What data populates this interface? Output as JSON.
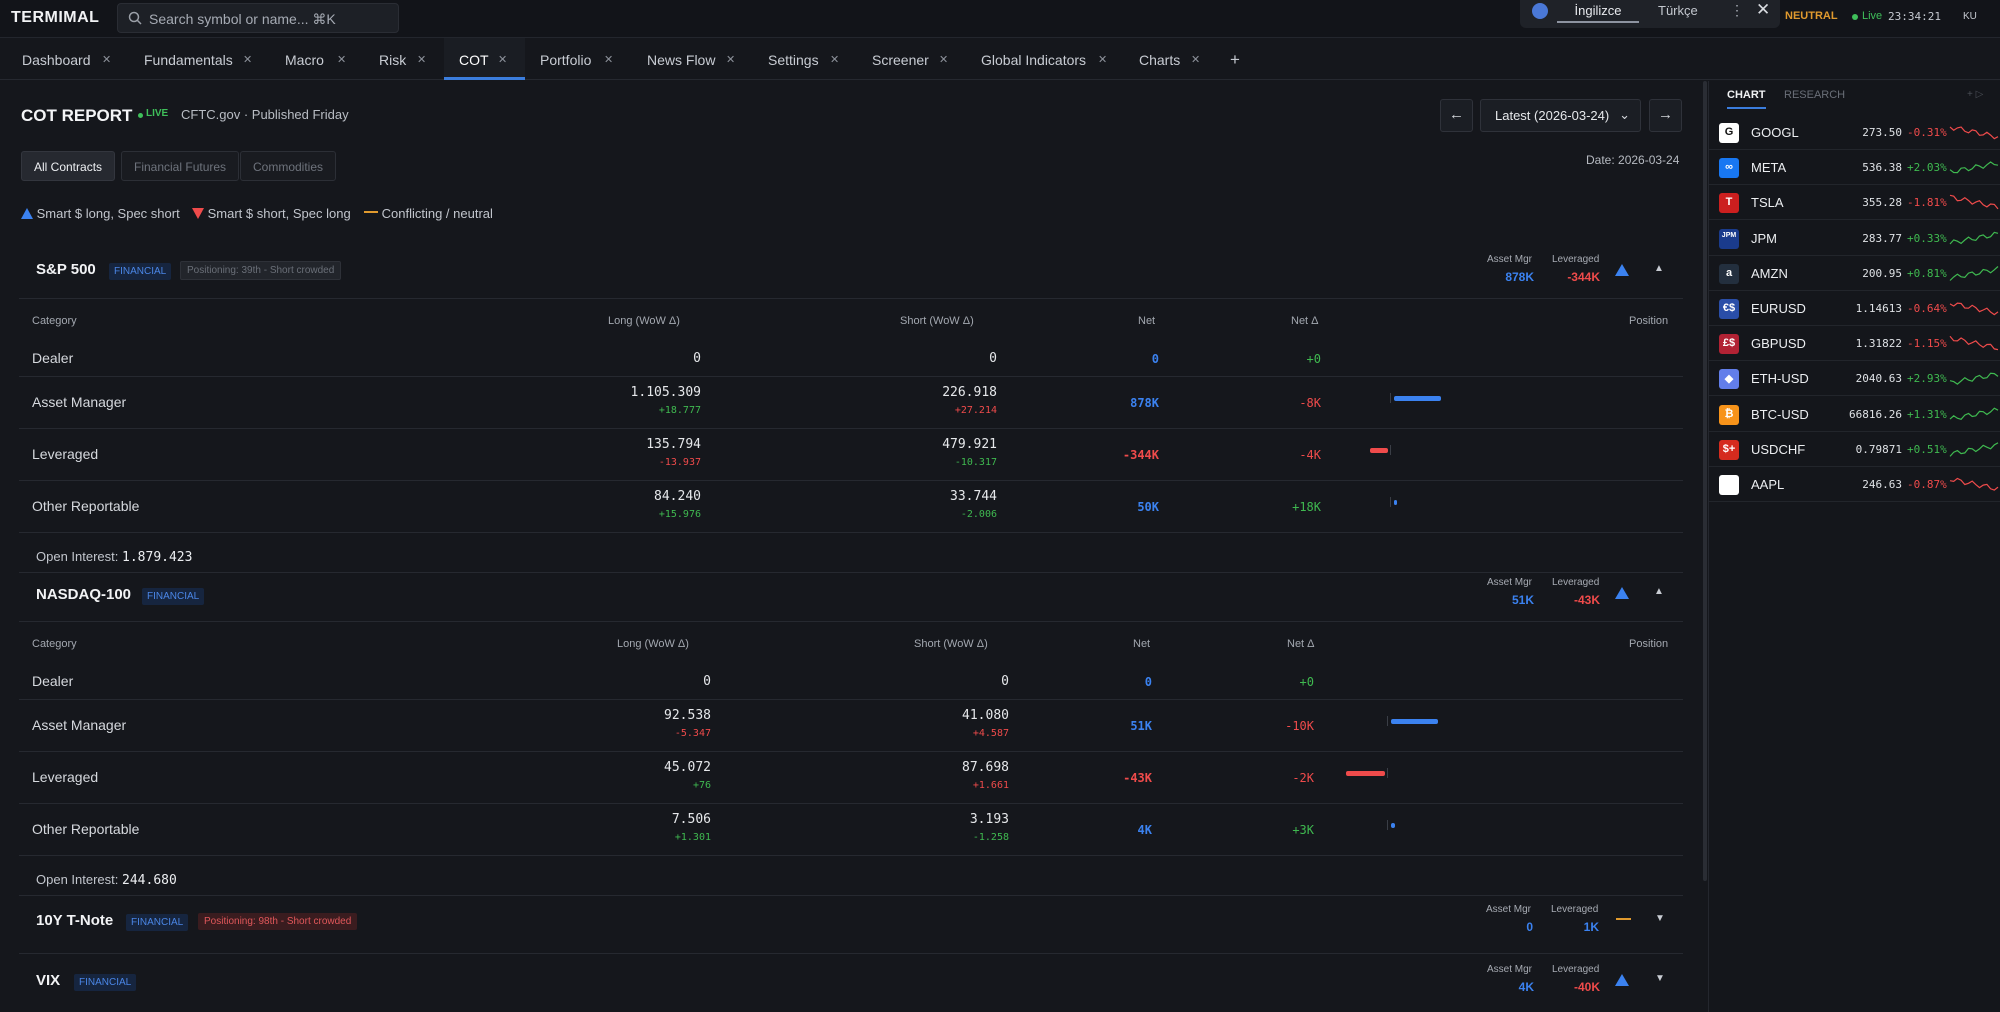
{
  "app": {
    "brand": "TERMIMAL",
    "search_placeholder": "Search symbol or name...  ⌘K"
  },
  "translate_bar": {
    "lang_active": "İngilizce",
    "lang_other": "Türkçe",
    "more": "⋮",
    "close": "✕"
  },
  "status": {
    "regime": "NEUTRAL",
    "live": "Live",
    "clock": "23:34:21",
    "user": "KU"
  },
  "tabs": [
    {
      "label": "Dashboard"
    },
    {
      "label": "Fundamentals"
    },
    {
      "label": "Macro"
    },
    {
      "label": "Risk"
    },
    {
      "label": "COT",
      "active": true
    },
    {
      "label": "Portfolio"
    },
    {
      "label": "News Flow"
    },
    {
      "label": "Settings"
    },
    {
      "label": "Screener"
    },
    {
      "label": "Global Indicators"
    },
    {
      "label": "Charts"
    }
  ],
  "add_tab": "+",
  "report": {
    "title": "COT REPORT",
    "live": "LIVE",
    "source": "CFTC.gov · Published Friday",
    "date_select": "Latest (2026-03-24)",
    "prev": "←",
    "next": "→",
    "date_info": "Date: 2026-03-24",
    "filters": [
      "All Contracts",
      "Financial Futures",
      "Commodities"
    ],
    "legend": [
      "Smart $ long, Spec short",
      "Smart $ short, Spec long",
      "Conflicting / neutral"
    ]
  },
  "columns": {
    "category": "Category",
    "long": "Long (WoW Δ)",
    "short": "Short (WoW Δ)",
    "net": "Net",
    "net_delta": "Net Δ",
    "position": "Position",
    "asset_mgr": "Asset Mgr",
    "leveraged": "Leveraged",
    "oi_label": "Open Interest:"
  },
  "sections": [
    {
      "name": "S&P 500",
      "type": "FINANCIAL",
      "positioning": "Positioning: 39th - Short crowded",
      "asset_mgr": "878K",
      "leveraged": "-344K",
      "open_interest": "1.879.423",
      "expanded": true,
      "rows": [
        {
          "category": "Dealer",
          "long": "0",
          "long_chg": "",
          "short": "0",
          "short_chg": "",
          "net": "0",
          "net_delta": "+0",
          "position_share": 0
        },
        {
          "category": "Asset Manager",
          "long": "1.105.309",
          "long_chg": "+18.777",
          "short": "226.918",
          "short_chg": "+27.214",
          "net": "878K",
          "net_delta": "-8K",
          "position_share": 1.0
        },
        {
          "category": "Leveraged",
          "long": "135.794",
          "long_chg": "-13.937",
          "short": "479.921",
          "short_chg": "-10.317",
          "net": "-344K",
          "net_delta": "-4K",
          "position_share": -0.39
        },
        {
          "category": "Other Reportable",
          "long": "84.240",
          "long_chg": "+15.976",
          "short": "33.744",
          "short_chg": "-2.006",
          "net": "50K",
          "net_delta": "+18K",
          "position_share": 0.06
        }
      ]
    },
    {
      "name": "NASDAQ-100",
      "type": "FINANCIAL",
      "positioning": "",
      "asset_mgr": "51K",
      "leveraged": "-43K",
      "open_interest": "244.680",
      "expanded": true,
      "rows": [
        {
          "category": "Dealer",
          "long": "0",
          "long_chg": "",
          "short": "0",
          "short_chg": "",
          "net": "0",
          "net_delta": "+0",
          "position_share": 0
        },
        {
          "category": "Asset Manager",
          "long": "92.538",
          "long_chg": "-5.347",
          "short": "41.080",
          "short_chg": "+4.587",
          "net": "51K",
          "net_delta": "-10K",
          "position_share": 1.0
        },
        {
          "category": "Leveraged",
          "long": "45.072",
          "long_chg": "+76",
          "short": "87.698",
          "short_chg": "+1.661",
          "net": "-43K",
          "net_delta": "-2K",
          "position_share": -0.84
        },
        {
          "category": "Other Reportable",
          "long": "7.506",
          "long_chg": "+1.301",
          "short": "3.193",
          "short_chg": "-1.258",
          "net": "4K",
          "net_delta": "+3K",
          "position_share": 0.08
        }
      ]
    },
    {
      "name": "10Y T-Note",
      "type": "FINANCIAL",
      "positioning": "Positioning: 98th - Short crowded",
      "asset_mgr": "0",
      "leveraged": "1K",
      "expanded": false
    },
    {
      "name": "VIX",
      "type": "FINANCIAL",
      "positioning": "",
      "asset_mgr": "4K",
      "leveraged": "-40K",
      "expanded": false
    }
  ],
  "right_panel": {
    "tab_chart": "CHART",
    "tab_research": "RESEARCH",
    "watchlist": [
      {
        "symbol": "GOOGL",
        "price": "273.50",
        "change": "-0.31%",
        "logo": "G",
        "logo_color": "#ffffff",
        "trend": "down"
      },
      {
        "symbol": "META",
        "price": "536.38",
        "change": "+2.03%",
        "logo": "∞",
        "logo_color": "#1877f2",
        "trend": "up"
      },
      {
        "symbol": "TSLA",
        "price": "355.28",
        "change": "-1.81%",
        "logo": "T",
        "logo_color": "#cc1f1f",
        "trend": "down"
      },
      {
        "symbol": "JPM",
        "price": "283.77",
        "change": "+0.33%",
        "logo": "JPM",
        "logo_color": "#1a3b8c",
        "trend": "up"
      },
      {
        "symbol": "AMZN",
        "price": "200.95",
        "change": "+0.81%",
        "logo": "a",
        "logo_color": "#232f3e",
        "trend": "up"
      },
      {
        "symbol": "EURUSD",
        "price": "1.14613",
        "change": "-0.64%",
        "logo": "€$",
        "logo_color": "#2a4ea8",
        "trend": "down"
      },
      {
        "symbol": "GBPUSD",
        "price": "1.31822",
        "change": "-1.15%",
        "logo": "£$",
        "logo_color": "#b22234",
        "trend": "down"
      },
      {
        "symbol": "ETH-USD",
        "price": "2040.63",
        "change": "+2.93%",
        "logo": "◆",
        "logo_color": "#627eea",
        "trend": "up"
      },
      {
        "symbol": "BTC-USD",
        "price": "66816.26",
        "change": "+1.31%",
        "logo": "₿",
        "logo_color": "#f7931a",
        "trend": "up"
      },
      {
        "symbol": "USDCHF",
        "price": "0.79871",
        "change": "+0.51%",
        "logo": "$+",
        "logo_color": "#d52b1e",
        "trend": "up"
      },
      {
        "symbol": "AAPL",
        "price": "246.63",
        "change": "-0.87%",
        "logo": "",
        "logo_color": "#ffffff",
        "trend": "down"
      }
    ]
  },
  "colors": {
    "accent": "#3b7ddd",
    "up": "#3fb950",
    "down": "#ef4b4b",
    "neutral": "#e09a2e",
    "net_blue": "#3b82f0"
  }
}
